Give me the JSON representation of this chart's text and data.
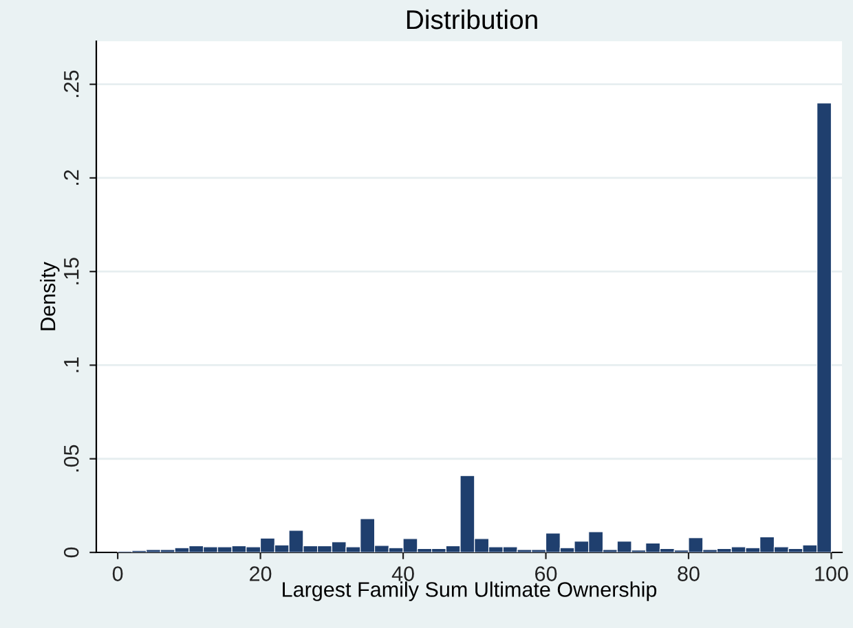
{
  "chart_data": {
    "type": "histogram",
    "title": "Distribution",
    "xlabel": "Largest Family Sum Ultimate Ownership",
    "ylabel": "Density",
    "bins": [
      0,
      2,
      4,
      6,
      8,
      10,
      12,
      14,
      16,
      18,
      20,
      22,
      24,
      26,
      28,
      30,
      32,
      34,
      36,
      38,
      40,
      42,
      44,
      46,
      48,
      50,
      52,
      54,
      56,
      58,
      60,
      62,
      64,
      66,
      68,
      70,
      72,
      74,
      76,
      78,
      80,
      82,
      84,
      86,
      88,
      90,
      92,
      94,
      96,
      98,
      100
    ],
    "values": [
      0.0007,
      0.001,
      0.0015,
      0.0015,
      0.0025,
      0.0035,
      0.003,
      0.003,
      0.0035,
      0.003,
      0.0076,
      0.004,
      0.0118,
      0.0035,
      0.0035,
      0.0056,
      0.003,
      0.018,
      0.0037,
      0.0025,
      0.0074,
      0.002,
      0.002,
      0.0035,
      0.041,
      0.0074,
      0.003,
      0.003,
      0.0015,
      0.0015,
      0.0103,
      0.0025,
      0.006,
      0.011,
      0.0015,
      0.006,
      0.0012,
      0.005,
      0.002,
      0.0012,
      0.0078,
      0.0015,
      0.002,
      0.003,
      0.0025,
      0.0083,
      0.003,
      0.002,
      0.004,
      0.24
    ],
    "color": "#1f3f6e",
    "xlim": [
      -3,
      101.5
    ],
    "ylim": [
      0,
      0.273
    ],
    "xticks": [
      0,
      20,
      40,
      60,
      80,
      100
    ],
    "yticks": [
      0,
      {
        "value": 0.05,
        "label": ".05"
      },
      {
        "value": 0.1,
        "label": ".1"
      },
      {
        "value": 0.15,
        "label": ".15"
      },
      {
        "value": 0.2,
        "label": ".2"
      },
      {
        "value": 0.25,
        "label": ".25"
      }
    ],
    "grid": "y"
  }
}
